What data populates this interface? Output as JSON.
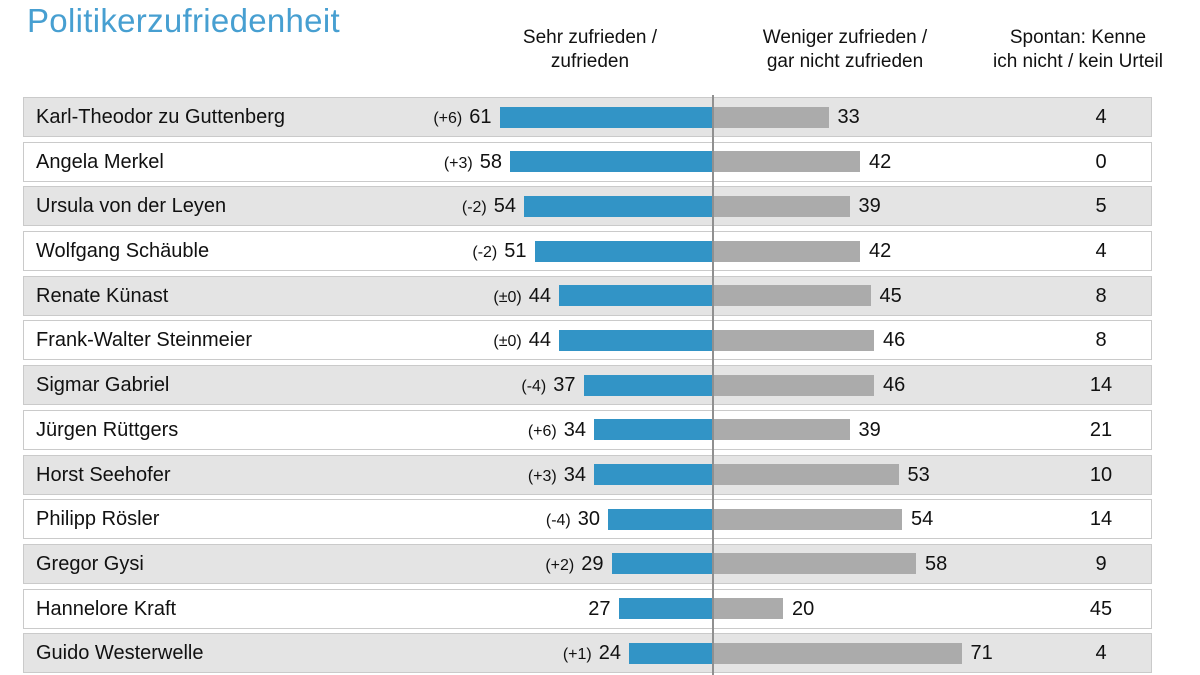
{
  "title": "Politikerzufriedenheit",
  "headers": {
    "satisfied": [
      "Sehr zufrieden /",
      "zufrieden"
    ],
    "unsatisfied": [
      "Weniger zufrieden /",
      "gar nicht zufrieden"
    ],
    "no_opinion": [
      "Spontan: Kenne",
      "ich nicht / kein Urteil"
    ]
  },
  "colors": {
    "title_text": "#479fd1",
    "satisfied_bar": "#3294c6",
    "unsatisfied_bar": "#ababab",
    "row_alt_bg": "#e4e4e4",
    "row_border": "#cacaca",
    "divider_line": "#909090"
  },
  "chart_data": {
    "type": "bar",
    "orientation": "horizontal",
    "title": "Politikerzufriedenheit",
    "value_unit": "percent",
    "legend_position": "top",
    "grid": false,
    "xlim": [
      0,
      100
    ],
    "categories": [
      "Karl-Theodor zu Guttenberg",
      "Angela Merkel",
      "Ursula von der Leyen",
      "Wolfgang Schäuble",
      "Renate Künast",
      "Frank-Walter Steinmeier",
      "Sigmar Gabriel",
      "Jürgen Rüttgers",
      "Horst Seehofer",
      "Philipp Rösler",
      "Gregor Gysi",
      "Hannelore Kraft",
      "Guido Westerwelle"
    ],
    "changes": [
      "(+6)",
      "(+3)",
      "(-2)",
      "(-2)",
      "(±0)",
      "(±0)",
      "(-4)",
      "(+6)",
      "(+3)",
      "(-4)",
      "(+2)",
      "",
      "(+1)"
    ],
    "series": [
      {
        "name": "Sehr zufrieden / zufrieden",
        "values": [
          61,
          58,
          54,
          51,
          44,
          44,
          37,
          34,
          34,
          30,
          29,
          27,
          24
        ]
      },
      {
        "name": "Weniger zufrieden / gar nicht zufrieden",
        "values": [
          33,
          42,
          39,
          42,
          45,
          46,
          46,
          39,
          53,
          54,
          58,
          20,
          71
        ]
      },
      {
        "name": "Spontan: Kenne ich nicht / kein Urteil",
        "values": [
          4,
          0,
          5,
          4,
          8,
          8,
          14,
          21,
          10,
          14,
          9,
          45,
          4
        ]
      }
    ]
  }
}
